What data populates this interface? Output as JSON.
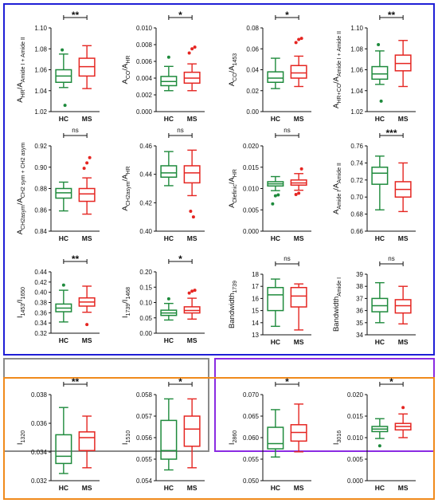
{
  "colors": {
    "hc": "#1e8a3c",
    "ms": "#e52521",
    "panel_blue": "#1f1fd6",
    "panel_gray": "#8a8a8a",
    "panel_purple": "#8a2be2",
    "panel_orange": "#f08a1c"
  },
  "groups": [
    "HC",
    "MS"
  ],
  "panels": [
    {
      "name": "panel-vibrational-ratios",
      "color_key": "panel_blue",
      "charts": [
        {
          "type": "box",
          "ylabel": "A_HR/A_Amide I + Amide II",
          "ylim": [
            1.02,
            1.1
          ],
          "yticks": [
            "1.02",
            "1.04",
            "1.06",
            "1.08",
            "1.10"
          ],
          "significance": "**",
          "series": [
            {
              "name": "HC",
              "whisker_low": 1.043,
              "q1": 1.048,
              "median": 1.054,
              "q3": 1.06,
              "whisker_high": 1.075,
              "outliers": [
                1.079,
                1.026
              ]
            },
            {
              "name": "MS",
              "whisker_low": 1.042,
              "q1": 1.054,
              "median": 1.063,
              "q3": 1.071,
              "whisker_high": 1.083,
              "outliers": []
            }
          ]
        },
        {
          "type": "box",
          "ylabel": "A_CO/A_HR",
          "ylim": [
            0.0,
            0.01
          ],
          "yticks": [
            "0.000",
            "0.002",
            "0.004",
            "0.006",
            "0.008",
            "0.010"
          ],
          "significance": "*",
          "series": [
            {
              "name": "HC",
              "whisker_low": 0.0025,
              "q1": 0.0031,
              "median": 0.0036,
              "q3": 0.0042,
              "whisker_high": 0.0054,
              "outliers": [
                0.0065
              ]
            },
            {
              "name": "MS",
              "whisker_low": 0.0025,
              "q1": 0.0034,
              "median": 0.004,
              "q3": 0.0047,
              "whisker_high": 0.0057,
              "outliers": [
                0.007,
                0.0075,
                0.0077
              ]
            }
          ]
        },
        {
          "type": "box",
          "ylabel": "A_CO/A_1453",
          "ylim": [
            0.0,
            0.08
          ],
          "yticks": [
            "0.00",
            "0.02",
            "0.04",
            "0.06",
            "0.08"
          ],
          "significance": "*",
          "series": [
            {
              "name": "HC",
              "whisker_low": 0.022,
              "q1": 0.028,
              "median": 0.032,
              "q3": 0.038,
              "whisker_high": 0.051,
              "outliers": []
            },
            {
              "name": "MS",
              "whisker_low": 0.024,
              "q1": 0.032,
              "median": 0.037,
              "q3": 0.044,
              "whisker_high": 0.053,
              "outliers": [
                0.066,
                0.069,
                0.07
              ]
            }
          ]
        },
        {
          "type": "box",
          "ylabel": "A_HR+CO/A_Amide I + Amide II",
          "ylim": [
            1.02,
            1.1
          ],
          "yticks": [
            "1.02",
            "1.04",
            "1.06",
            "1.08",
            "1.10"
          ],
          "significance": "**",
          "series": [
            {
              "name": "HC",
              "whisker_low": 1.046,
              "q1": 1.051,
              "median": 1.056,
              "q3": 1.063,
              "whisker_high": 1.078,
              "outliers": [
                1.084,
                1.03
              ]
            },
            {
              "name": "MS",
              "whisker_low": 1.044,
              "q1": 1.059,
              "median": 1.066,
              "q3": 1.074,
              "whisker_high": 1.088,
              "outliers": []
            }
          ]
        },
        {
          "type": "box",
          "ylabel": "A_CH2asym/A_CH2 sym + CH2 asym",
          "ylim": [
            0.84,
            0.92
          ],
          "yticks": [
            "0.84",
            "0.86",
            "0.88",
            "0.90",
            "0.92"
          ],
          "significance": "ns",
          "series": [
            {
              "name": "HC",
              "whisker_low": 0.859,
              "q1": 0.871,
              "median": 0.876,
              "q3": 0.88,
              "whisker_high": 0.886,
              "outliers": []
            },
            {
              "name": "MS",
              "whisker_low": 0.856,
              "q1": 0.868,
              "median": 0.875,
              "q3": 0.88,
              "whisker_high": 0.89,
              "outliers": [
                0.899,
                0.904,
                0.909
              ]
            }
          ]
        },
        {
          "type": "box",
          "ylabel": "A_CH2asym/A_HR",
          "ylim": [
            0.4,
            0.46
          ],
          "yticks": [
            "0.40",
            "0.42",
            "0.44",
            "0.46"
          ],
          "significance": "ns",
          "series": [
            {
              "name": "HC",
              "whisker_low": 0.432,
              "q1": 0.438,
              "median": 0.441,
              "q3": 0.446,
              "whisker_high": 0.456,
              "outliers": []
            },
            {
              "name": "MS",
              "whisker_low": 0.425,
              "q1": 0.434,
              "median": 0.441,
              "q3": 0.446,
              "whisker_high": 0.457,
              "outliers": [
                0.414,
                0.41
              ]
            }
          ]
        },
        {
          "type": "box",
          "ylabel": "A_Olefinic/A_HR",
          "ylim": [
            0.0,
            0.02
          ],
          "yticks": [
            "0.000",
            "0.005",
            "0.010",
            "0.015",
            "0.020"
          ],
          "significance": "ns",
          "series": [
            {
              "name": "HC",
              "whisker_low": 0.0095,
              "q1": 0.0106,
              "median": 0.0111,
              "q3": 0.0116,
              "whisker_high": 0.0128,
              "outliers": [
                0.0064,
                0.0083,
                0.0085
              ]
            },
            {
              "name": "MS",
              "whisker_low": 0.0096,
              "q1": 0.0108,
              "median": 0.0113,
              "q3": 0.012,
              "whisker_high": 0.0135,
              "outliers": [
                0.0086,
                0.0089,
                0.0146
              ]
            }
          ]
        },
        {
          "type": "box",
          "ylabel": "A_Amide I/A_Amide II",
          "ylim": [
            0.66,
            0.76
          ],
          "yticks": [
            "0.66",
            "0.68",
            "0.70",
            "0.72",
            "0.74",
            "0.76"
          ],
          "significance": "***",
          "series": [
            {
              "name": "HC",
              "whisker_low": 0.685,
              "q1": 0.715,
              "median": 0.728,
              "q3": 0.735,
              "whisker_high": 0.748,
              "outliers": []
            },
            {
              "name": "MS",
              "whisker_low": 0.683,
              "q1": 0.7,
              "median": 0.709,
              "q3": 0.718,
              "whisker_high": 0.74,
              "outliers": []
            }
          ]
        }
      ]
    },
    {
      "name": "panel-intensity-ratios",
      "color_key": "panel_gray",
      "charts": [
        {
          "type": "box",
          "ylabel": "I_1453/I_1650",
          "ylim": [
            0.32,
            0.44
          ],
          "yticks": [
            "0.32",
            "0.34",
            "0.36",
            "0.38",
            "0.40",
            "0.42",
            "0.44"
          ],
          "significance": "**",
          "series": [
            {
              "name": "HC",
              "whisker_low": 0.342,
              "q1": 0.362,
              "median": 0.369,
              "q3": 0.377,
              "whisker_high": 0.404,
              "outliers": [
                0.414
              ]
            },
            {
              "name": "MS",
              "whisker_low": 0.361,
              "q1": 0.373,
              "median": 0.381,
              "q3": 0.389,
              "whisker_high": 0.412,
              "outliers": [
                0.337
              ]
            }
          ]
        },
        {
          "type": "box",
          "ylabel": "I_1739/I_1468",
          "ylim": [
            0.0,
            0.2
          ],
          "yticks": [
            "0.00",
            "0.05",
            "0.10",
            "0.15",
            "0.20"
          ],
          "significance": "*",
          "series": [
            {
              "name": "HC",
              "whisker_low": 0.043,
              "q1": 0.058,
              "median": 0.066,
              "q3": 0.075,
              "whisker_high": 0.097,
              "outliers": [
                0.112
              ]
            },
            {
              "name": "MS",
              "whisker_low": 0.046,
              "q1": 0.066,
              "median": 0.074,
              "q3": 0.086,
              "whisker_high": 0.114,
              "outliers": [
                0.131,
                0.137,
                0.14
              ]
            }
          ]
        }
      ]
    },
    {
      "name": "panel-bandwidths",
      "color_key": "panel_purple",
      "charts": [
        {
          "type": "box",
          "ylabel": "Bandwidth_1739",
          "ylim": [
            13,
            18
          ],
          "yticks": [
            "13",
            "14",
            "15",
            "16",
            "17",
            "18"
          ],
          "significance": "ns",
          "series": [
            {
              "name": "HC",
              "whisker_low": 13.7,
              "q1": 15.0,
              "median": 16.3,
              "q3": 16.9,
              "whisker_high": 17.6,
              "outliers": []
            },
            {
              "name": "MS",
              "whisker_low": 13.4,
              "q1": 15.3,
              "median": 16.2,
              "q3": 16.9,
              "whisker_high": 17.2,
              "outliers": []
            }
          ]
        },
        {
          "type": "box",
          "ylabel": "Bandwidth_Amide I",
          "ylim": [
            34,
            39
          ],
          "yticks": [
            "34",
            "35",
            "36",
            "37",
            "38",
            "39"
          ],
          "significance": "ns",
          "series": [
            {
              "name": "HC",
              "whisker_low": 35.0,
              "q1": 35.9,
              "median": 36.4,
              "q3": 37.0,
              "whisker_high": 38.3,
              "outliers": []
            },
            {
              "name": "MS",
              "whisker_low": 34.9,
              "q1": 35.8,
              "median": 36.4,
              "q3": 36.9,
              "whisker_high": 38.0,
              "outliers": []
            }
          ]
        }
      ]
    },
    {
      "name": "panel-band-intensities",
      "color_key": "panel_orange",
      "charts": [
        {
          "type": "box",
          "ylabel": "I_1320",
          "ylim": [
            0.032,
            0.038
          ],
          "yticks": [
            "0.032",
            "0.034",
            "0.036",
            "0.038"
          ],
          "significance": "**",
          "series": [
            {
              "name": "HC",
              "whisker_low": 0.0325,
              "q1": 0.0332,
              "median": 0.0337,
              "q3": 0.0352,
              "whisker_high": 0.0371,
              "outliers": []
            },
            {
              "name": "MS",
              "whisker_low": 0.0329,
              "q1": 0.0341,
              "median": 0.035,
              "q3": 0.0354,
              "whisker_high": 0.0365,
              "outliers": []
            }
          ]
        },
        {
          "type": "box",
          "ylabel": "I_1510",
          "ylim": [
            0.054,
            0.058
          ],
          "yticks": [
            "0.054",
            "0.055",
            "0.056",
            "0.057",
            "0.058"
          ],
          "significance": "*",
          "series": [
            {
              "name": "HC",
              "whisker_low": 0.0545,
              "q1": 0.055,
              "median": 0.0554,
              "q3": 0.0568,
              "whisker_high": 0.0578,
              "outliers": []
            },
            {
              "name": "MS",
              "whisker_low": 0.0546,
              "q1": 0.0556,
              "median": 0.0564,
              "q3": 0.057,
              "whisker_high": 0.0578,
              "outliers": []
            }
          ]
        },
        {
          "type": "box",
          "ylabel": "I_2860",
          "ylim": [
            0.05,
            0.07
          ],
          "yticks": [
            "0.050",
            "0.055",
            "0.060",
            "0.065",
            "0.070"
          ],
          "significance": "*",
          "series": [
            {
              "name": "HC",
              "whisker_low": 0.0555,
              "q1": 0.0574,
              "median": 0.0586,
              "q3": 0.0624,
              "whisker_high": 0.0665,
              "outliers": []
            },
            {
              "name": "MS",
              "whisker_low": 0.0567,
              "q1": 0.0592,
              "median": 0.0612,
              "q3": 0.063,
              "whisker_high": 0.0678,
              "outliers": []
            }
          ]
        },
        {
          "type": "box",
          "ylabel": "I_3016",
          "ylim": [
            0.0,
            0.02
          ],
          "yticks": [
            "0.000",
            "0.005",
            "0.010",
            "0.015",
            "0.020"
          ],
          "significance": "*",
          "series": [
            {
              "name": "HC",
              "whisker_low": 0.0098,
              "q1": 0.0114,
              "median": 0.012,
              "q3": 0.0126,
              "whisker_high": 0.0144,
              "outliers": [
                0.0081
              ]
            },
            {
              "name": "MS",
              "whisker_low": 0.01,
              "q1": 0.0118,
              "median": 0.0126,
              "q3": 0.0133,
              "whisker_high": 0.0155,
              "outliers": [
                0.017
              ]
            }
          ]
        }
      ]
    }
  ]
}
